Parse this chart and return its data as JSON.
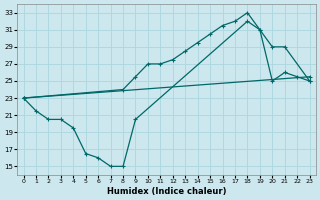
{
  "xlabel": "Humidex (Indice chaleur)",
  "bg_color": "#cce8ee",
  "grid_color": "#b0d8e0",
  "line_color": "#006868",
  "xlim": [
    -0.5,
    23.5
  ],
  "ylim": [
    14,
    34
  ],
  "xticks": [
    0,
    1,
    2,
    3,
    4,
    5,
    6,
    7,
    8,
    9,
    10,
    11,
    12,
    13,
    14,
    15,
    16,
    17,
    18,
    19,
    20,
    21,
    22,
    23
  ],
  "yticks": [
    15,
    17,
    19,
    21,
    23,
    25,
    27,
    29,
    31,
    33
  ],
  "line1_x": [
    0,
    8,
    9,
    10,
    11,
    12,
    13,
    14,
    15,
    16,
    17,
    18,
    19,
    20,
    21,
    23
  ],
  "line1_y": [
    23,
    24,
    25.5,
    27,
    27,
    27.5,
    28.5,
    29.5,
    30.5,
    31.5,
    32,
    33,
    31,
    29,
    29,
    25
  ],
  "line2_x": [
    0,
    1,
    2,
    3,
    4,
    5,
    6,
    7,
    8,
    9,
    18,
    19,
    20,
    21,
    22,
    23
  ],
  "line2_y": [
    23,
    21.5,
    20.5,
    20.5,
    19.5,
    16.5,
    16,
    15,
    15,
    20.5,
    32,
    31,
    25,
    26,
    25.5,
    25
  ],
  "line3_x": [
    0,
    23
  ],
  "line3_y": [
    23,
    25.5
  ]
}
